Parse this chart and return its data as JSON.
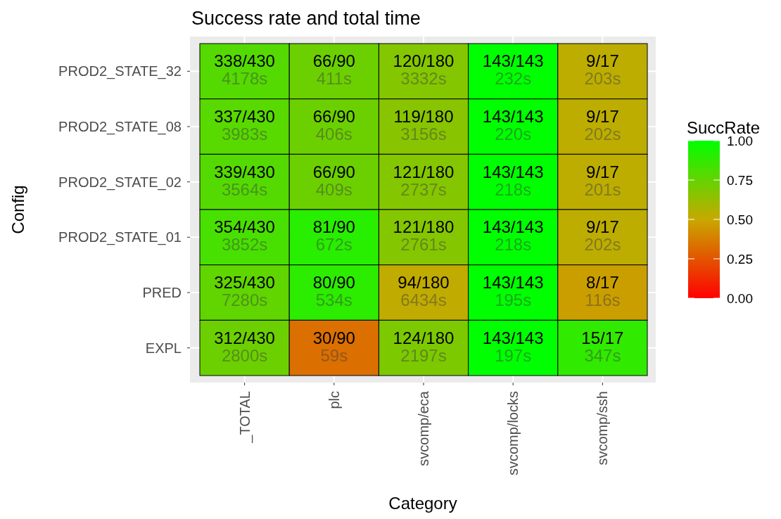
{
  "chart_data": {
    "type": "heatmap",
    "title": "Success rate and total time",
    "xlabel": "Category",
    "ylabel": "Config",
    "clabel": "SuccRate",
    "categories": [
      "_TOTAL",
      "plc",
      "svcomp/eca",
      "svcomp/locks",
      "svcomp/ssh"
    ],
    "y_categories": [
      "PROD2_STATE_32",
      "PROD2_STATE_08",
      "PROD2_STATE_02",
      "PROD2_STATE_01",
      "PRED",
      "EXPL"
    ],
    "cells": [
      [
        0.79,
        0.73,
        0.67,
        1.0,
        0.53
      ],
      [
        0.78,
        0.73,
        0.66,
        1.0,
        0.53
      ],
      [
        0.79,
        0.73,
        0.67,
        1.0,
        0.53
      ],
      [
        0.82,
        0.9,
        0.67,
        1.0,
        0.53
      ],
      [
        0.76,
        0.89,
        0.52,
        1.0,
        0.47
      ],
      [
        0.73,
        0.33,
        0.69,
        1.0,
        0.88
      ]
    ],
    "cell_labels": [
      [
        "338/430\n4178s",
        "66/90\n411s",
        "120/180\n3332s",
        "143/143\n232s",
        "9/17\n203s"
      ],
      [
        "337/430\n3983s",
        "66/90\n406s",
        "119/180\n3156s",
        "143/143\n220s",
        "9/17\n202s"
      ],
      [
        "339/430\n3564s",
        "66/90\n409s",
        "121/180\n2737s",
        "143/143\n218s",
        "9/17\n201s"
      ],
      [
        "354/430\n3852s",
        "81/90\n672s",
        "121/180\n2761s",
        "143/143\n218s",
        "9/17\n202s"
      ],
      [
        "325/430\n7280s",
        "80/90\n534s",
        "94/180\n6434s",
        "143/143\n195s",
        "8/17\n116s"
      ],
      [
        "312/430\n2800s",
        "30/90\n59s",
        "124/180\n2197s",
        "143/143\n197s",
        "15/17\n347s"
      ]
    ],
    "clim": [
      0,
      1
    ],
    "cticks": [
      {
        "value": 0,
        "label": "0.00"
      },
      {
        "value": 0.25,
        "label": "0.25"
      },
      {
        "value": 0.5,
        "label": "0.50"
      },
      {
        "value": 0.75,
        "label": "0.75"
      },
      {
        "value": 1,
        "label": "1.00"
      }
    ],
    "grid": true
  }
}
